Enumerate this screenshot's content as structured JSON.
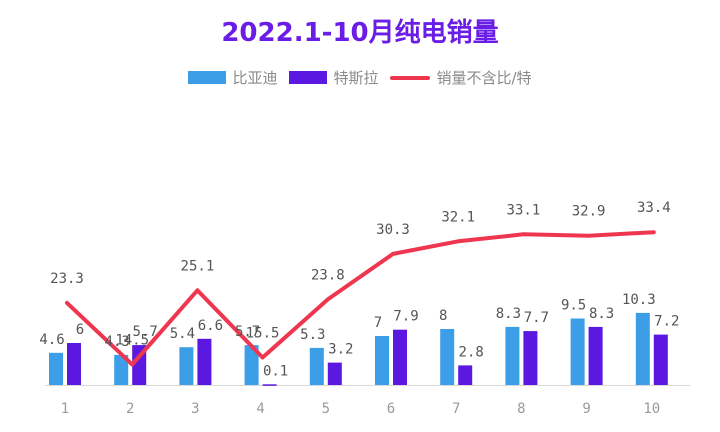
{
  "chart_data": {
    "type": "bar",
    "title": "2022.1-10月纯电销量",
    "categories": [
      "1",
      "2",
      "3",
      "4",
      "5",
      "6",
      "7",
      "8",
      "9",
      "10"
    ],
    "series": [
      {
        "name": "比亚迪",
        "kind": "bar",
        "color": "#3d9ee8",
        "values": [
          4.6,
          4.3,
          5.4,
          5.7,
          5.3,
          7,
          8,
          8.3,
          9.5,
          10.3
        ],
        "labels": [
          "4.6",
          "4.3",
          "5.4",
          "5.7",
          "5.3",
          "7",
          "8",
          "8.3",
          "9.5",
          "10.3"
        ]
      },
      {
        "name": "特斯拉",
        "kind": "bar",
        "color": "#5b18e0",
        "values": [
          6,
          5.7,
          6.6,
          0.1,
          3.2,
          7.9,
          2.8,
          7.7,
          8.3,
          7.2
        ],
        "labels": [
          "6",
          "5.7",
          "6.6",
          "0.1",
          "3.2",
          "7.9",
          "2.8",
          "7.7",
          "8.3",
          "7.2"
        ]
      },
      {
        "name": "销量不含比/特",
        "kind": "line",
        "color": "#f0364f",
        "values": [
          23.3,
          14.5,
          25.1,
          15.5,
          23.8,
          30.3,
          32.1,
          33.1,
          32.9,
          33.4
        ],
        "labels": [
          "23.3",
          "14.5",
          "25.1",
          "15.5",
          "23.8",
          "30.3",
          "32.1",
          "33.1",
          "32.9",
          "33.4"
        ]
      }
    ],
    "legend": "top",
    "grid": false,
    "ylim": [
      0,
      50
    ]
  }
}
